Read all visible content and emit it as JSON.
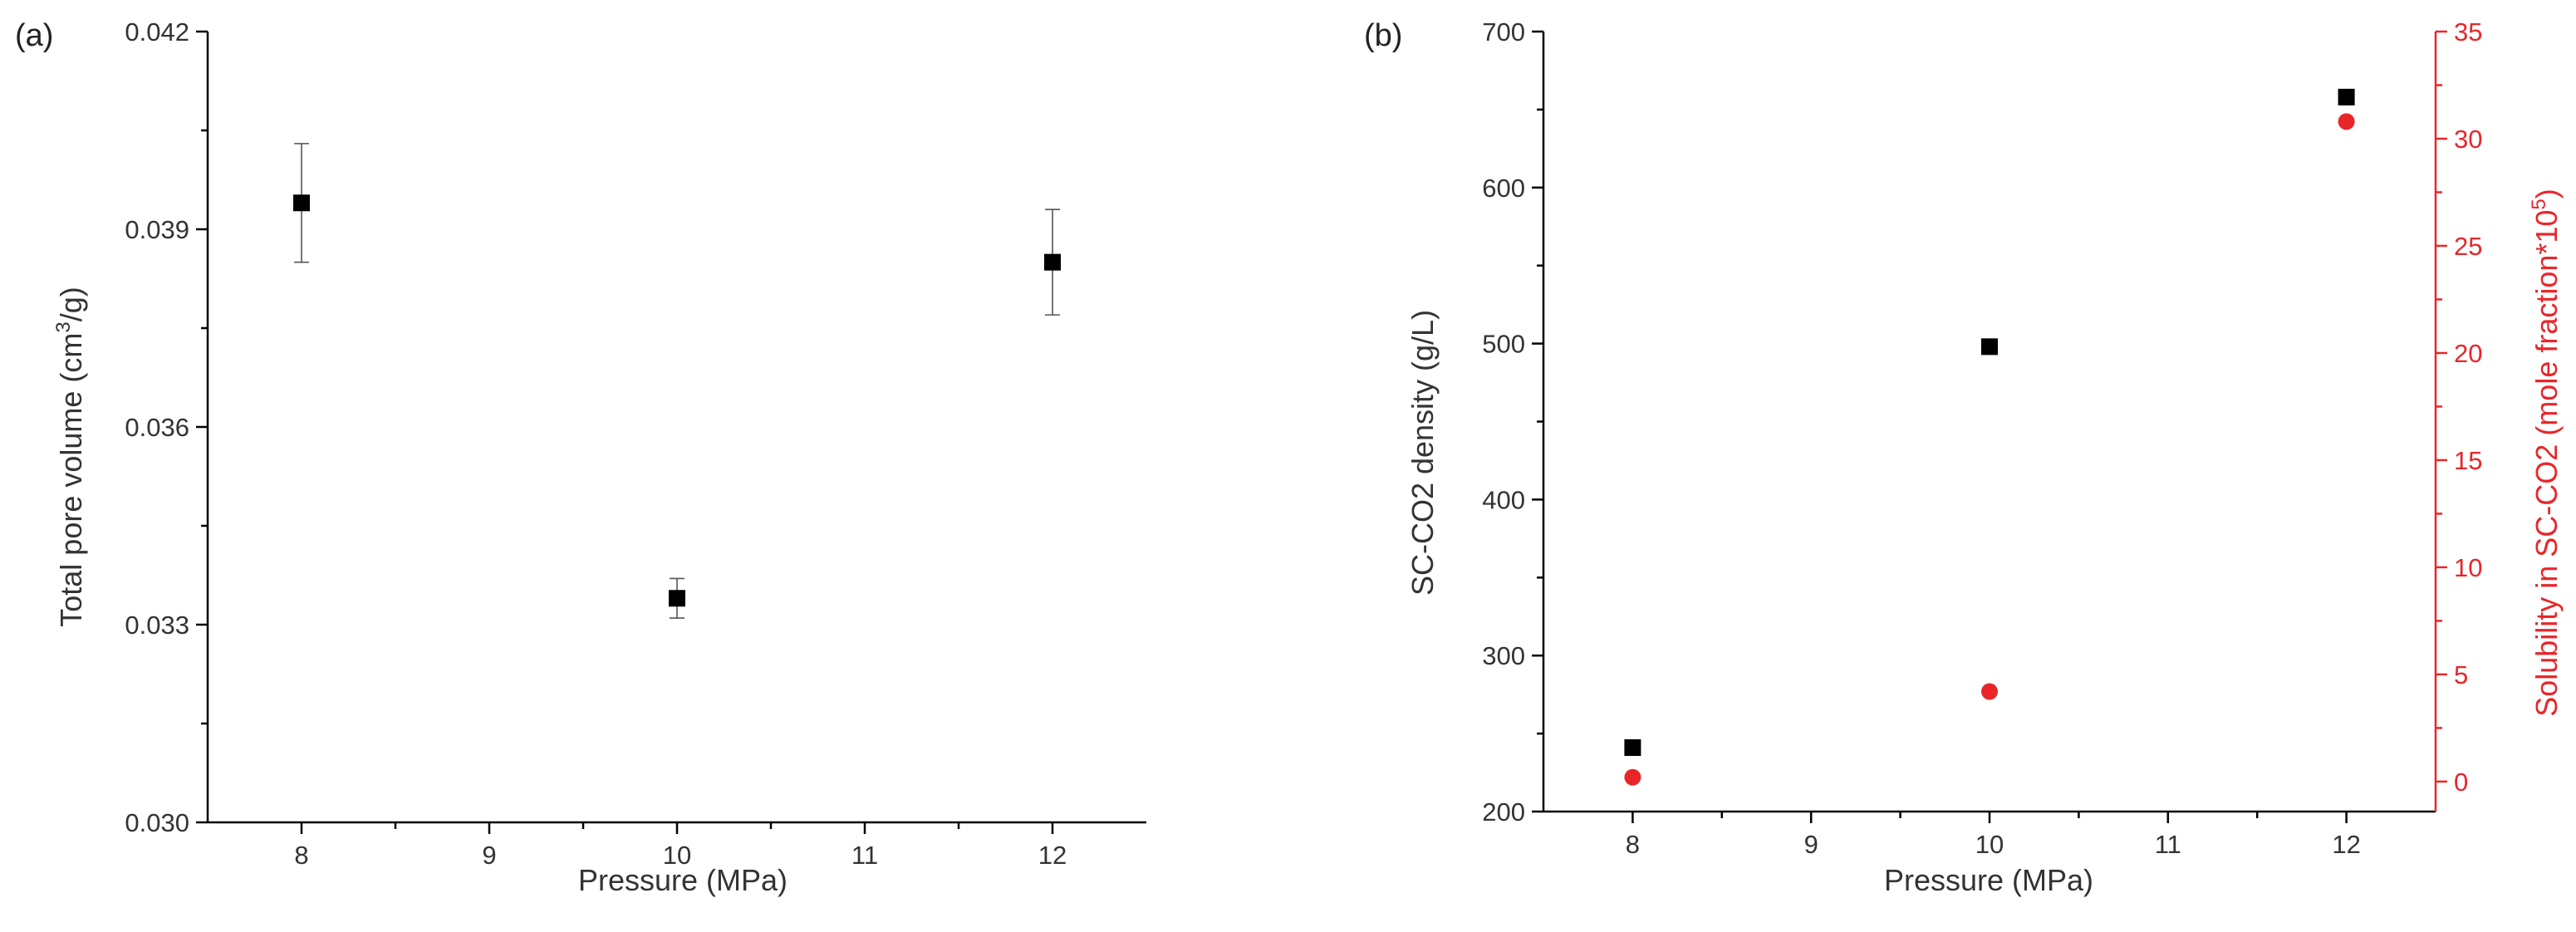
{
  "chart_data": [
    {
      "type": "scatter",
      "panel_label": "(a)",
      "xlabel": "Pressure (MPa)",
      "ylabel_main": "Total pore volume (cm",
      "ylabel_sup": "3",
      "ylabel_tail": "/g)",
      "xlim": [
        7.5,
        12.5
      ],
      "ylim": [
        0.03,
        0.042
      ],
      "xticks_major": [
        8,
        9,
        10,
        11,
        12
      ],
      "xtick_labels": [
        "8",
        "9",
        "10",
        "11",
        "12"
      ],
      "yticks_major": [
        0.03,
        0.033,
        0.036,
        0.039,
        0.042
      ],
      "ytick_labels": [
        "0.030",
        "0.033",
        "0.036",
        "0.039",
        "0.042"
      ],
      "series": [
        {
          "marker": "square",
          "color": "#000000",
          "x": [
            8,
            10,
            12
          ],
          "y": [
            0.0394,
            0.0334,
            0.0385
          ],
          "y_err": [
            0.0009,
            0.0003,
            0.0008
          ]
        }
      ]
    },
    {
      "type": "scatter",
      "panel_label": "(b)",
      "xlabel": "Pressure (MPa)",
      "ylabel_left": "SC-CO2 density (g/L)",
      "ylabel_right_main": "Solubility in SC-CO2 (mole fraction*10",
      "ylabel_right_sup": "5",
      "ylabel_right_tail": ")",
      "xlim": [
        7.5,
        12.5
      ],
      "ylim_left": [
        200,
        700
      ],
      "ylim_right": [
        -1.4,
        35
      ],
      "xticks_major": [
        8,
        9,
        10,
        11,
        12
      ],
      "xtick_labels": [
        "8",
        "9",
        "10",
        "11",
        "12"
      ],
      "yticks_left": [
        200,
        300,
        400,
        500,
        600,
        700
      ],
      "ytick_labels_left": [
        "200",
        "300",
        "400",
        "500",
        "600",
        "700"
      ],
      "yticks_right": [
        0,
        5,
        10,
        15,
        20,
        25,
        30,
        35
      ],
      "ytick_labels_right": [
        "0",
        "5",
        "10",
        "15",
        "20",
        "25",
        "30",
        "35"
      ],
      "right_axis_color": "#e8262a",
      "series": [
        {
          "axis": "left",
          "marker": "square",
          "color": "#000000",
          "x": [
            8,
            10,
            12
          ],
          "y": [
            241,
            498,
            658
          ]
        },
        {
          "axis": "right",
          "marker": "circle",
          "color": "#e8262a",
          "x": [
            8,
            10,
            12
          ],
          "y": [
            0.2,
            4.2,
            30.8
          ]
        }
      ]
    }
  ]
}
